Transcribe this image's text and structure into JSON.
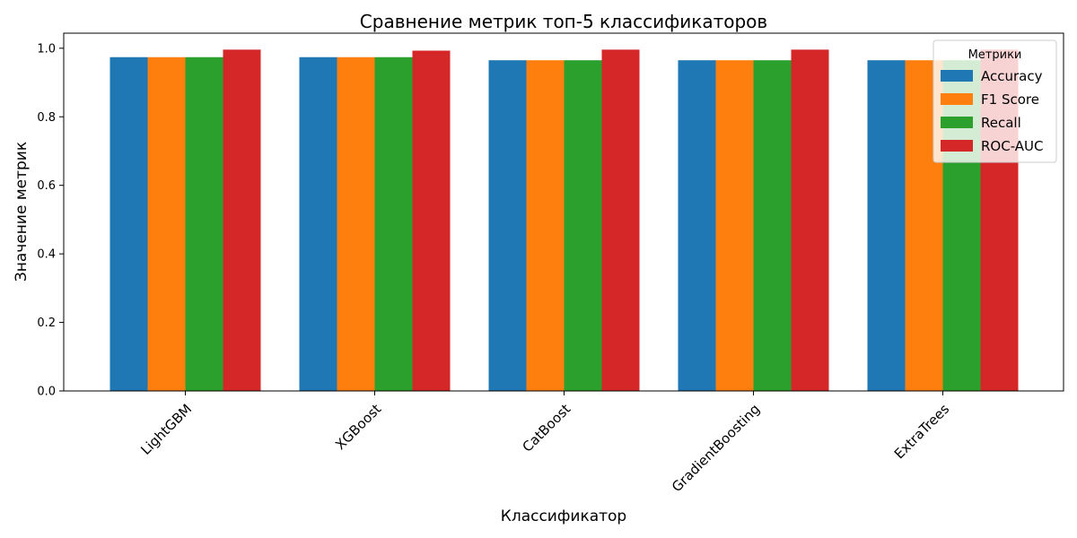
{
  "chart_data": {
    "type": "bar",
    "title": "Сравнение метрик топ-5 классификаторов",
    "xlabel": "Классификатор",
    "ylabel": "Значение метрик",
    "categories": [
      "LightGBM",
      "XGBoost",
      "CatBoost",
      "GradientBoosting",
      "ExtraTrees"
    ],
    "series": [
      {
        "name": "Accuracy",
        "color": "#1f77b4",
        "values": [
          0.974,
          0.974,
          0.965,
          0.965,
          0.965
        ]
      },
      {
        "name": "F1 Score",
        "color": "#ff7f0e",
        "values": [
          0.974,
          0.974,
          0.965,
          0.965,
          0.965
        ]
      },
      {
        "name": "Recall",
        "color": "#2ca02c",
        "values": [
          0.974,
          0.974,
          0.965,
          0.965,
          0.965
        ]
      },
      {
        "name": "ROC-AUC",
        "color": "#d62728",
        "values": [
          0.996,
          0.993,
          0.996,
          0.996,
          0.996
        ]
      }
    ],
    "ylim": [
      0,
      1.044
    ],
    "yticks": [
      0.0,
      0.2,
      0.4,
      0.6,
      0.8,
      1.0
    ],
    "ytick_labels": [
      "0.0",
      "0.2",
      "0.4",
      "0.6",
      "0.8",
      "1.0"
    ],
    "xtick_rotation": 45,
    "grid": false,
    "legend": {
      "title": "Метрики",
      "position": "top-right"
    }
  }
}
